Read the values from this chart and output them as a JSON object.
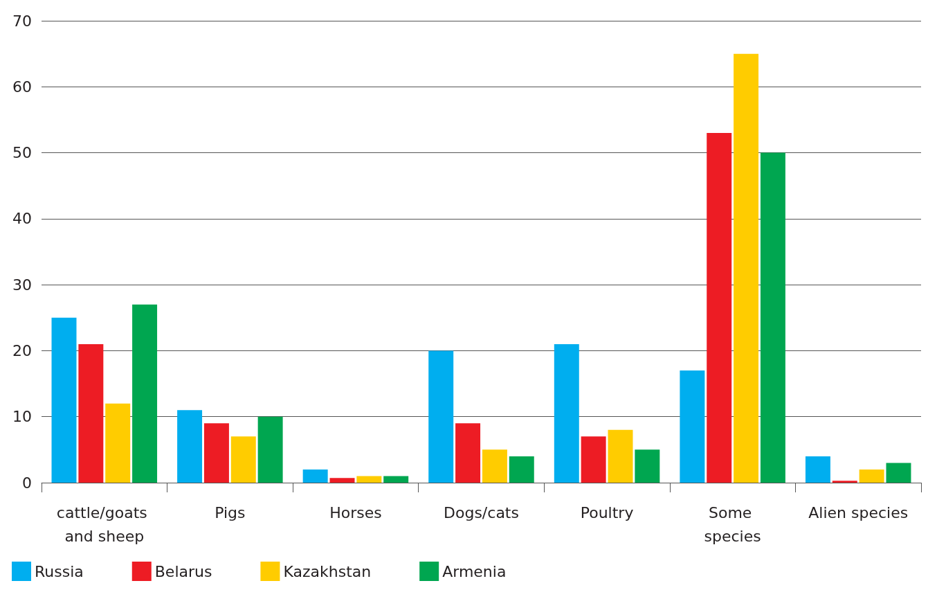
{
  "chart_data": {
    "type": "bar",
    "categories": [
      "cattle/goats and sheep",
      "Pigs",
      "Horses",
      "Dogs/cats",
      "Poultry",
      "Some species",
      "Alien species"
    ],
    "series": [
      {
        "name": "Russia",
        "color": "#00aeef",
        "values": [
          25,
          11,
          2,
          20,
          21,
          17,
          4
        ]
      },
      {
        "name": "Belarus",
        "color": "#ed1c24",
        "values": [
          21,
          9,
          0.7,
          9,
          7,
          53,
          0.3
        ]
      },
      {
        "name": "Kazakhstan",
        "color": "#ffcc00",
        "values": [
          12,
          7,
          1,
          5,
          8,
          65,
          2
        ]
      },
      {
        "name": "Armenia",
        "color": "#00a650",
        "values": [
          27,
          10,
          1,
          4,
          5,
          50,
          3
        ]
      }
    ],
    "ylim": [
      0,
      70
    ],
    "yticks": [
      0,
      10,
      20,
      30,
      40,
      50,
      60,
      70
    ],
    "grid": "y",
    "legend": "bottom left"
  }
}
